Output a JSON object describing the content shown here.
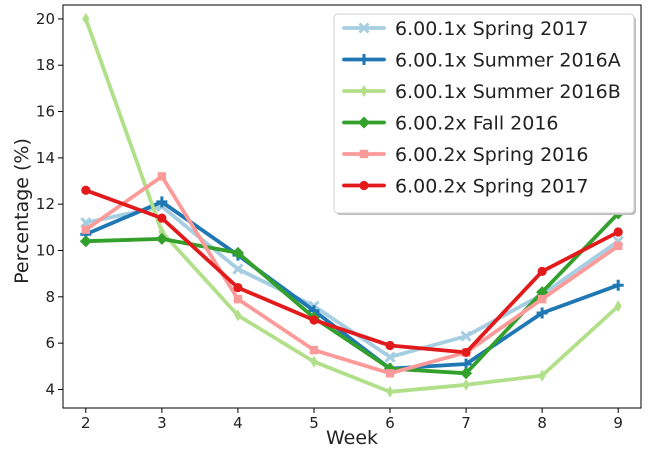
{
  "chart_data": {
    "type": "line",
    "xlabel": "Week",
    "ylabel": "Percentage (%)",
    "xlim": [
      1.7,
      9.3
    ],
    "ylim": [
      3.2,
      20.6
    ],
    "x_ticks": [
      2,
      3,
      4,
      5,
      6,
      7,
      8,
      9
    ],
    "y_ticks": [
      4,
      6,
      8,
      10,
      12,
      14,
      16,
      18,
      20
    ],
    "grid": false,
    "legend_position": "top-right",
    "x": [
      2,
      3,
      4,
      5,
      6,
      7,
      8,
      9
    ],
    "series": [
      {
        "name": "6.00.1x Spring 2017",
        "color": "#a6cee3",
        "marker": "x",
        "values": [
          11.2,
          11.9,
          9.2,
          7.6,
          5.4,
          6.3,
          8.1,
          10.4
        ]
      },
      {
        "name": "6.00.1x Summer 2016A",
        "color": "#1f78b4",
        "marker": "plus",
        "values": [
          10.7,
          12.1,
          9.8,
          7.4,
          4.9,
          5.1,
          7.3,
          8.5
        ]
      },
      {
        "name": "6.00.1x Summer 2016B",
        "color": "#b2df8a",
        "marker": "thin-diamond",
        "values": [
          20.0,
          10.8,
          7.2,
          5.2,
          3.9,
          4.2,
          4.6,
          7.6
        ]
      },
      {
        "name": "6.00.2x Fall 2016",
        "color": "#33a02c",
        "marker": "diamond",
        "values": [
          10.4,
          10.5,
          9.9,
          7.1,
          4.9,
          4.7,
          8.2,
          11.6
        ]
      },
      {
        "name": "6.00.2x Spring 2016",
        "color": "#fb9a99",
        "marker": "square",
        "values": [
          10.9,
          13.2,
          7.9,
          5.7,
          4.7,
          5.6,
          7.9,
          10.2
        ]
      },
      {
        "name": "6.00.2x Spring 2017",
        "color": "#e31a1c",
        "marker": "circle",
        "values": [
          12.6,
          11.4,
          8.4,
          7.0,
          5.9,
          5.6,
          9.1,
          10.8
        ]
      }
    ]
  }
}
